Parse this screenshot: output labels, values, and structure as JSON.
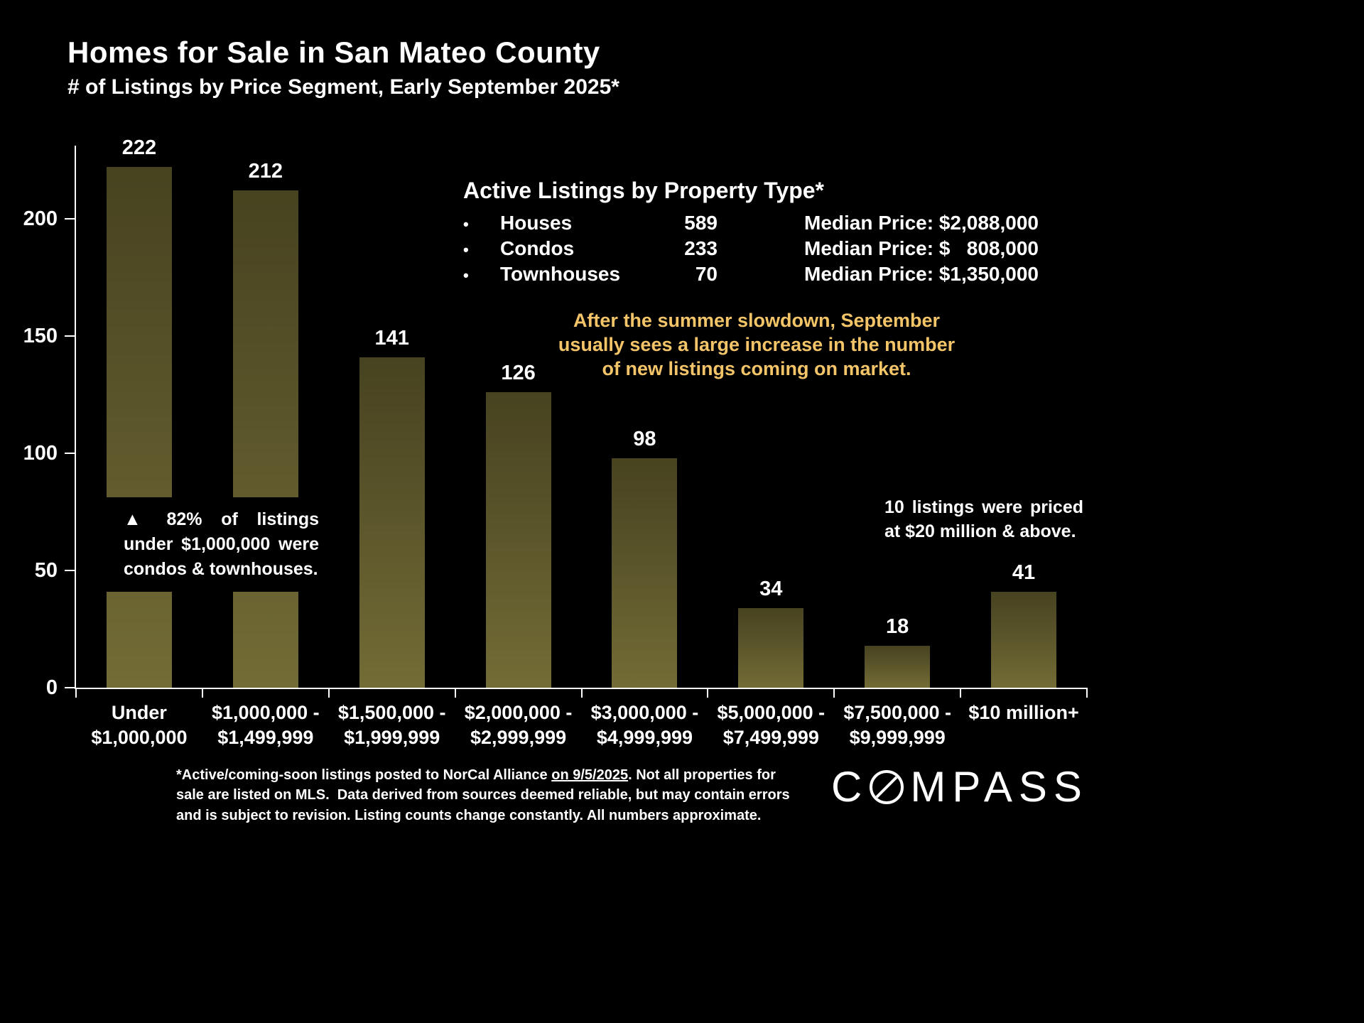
{
  "header": {
    "title": "Homes for Sale in San Mateo County",
    "subtitle": "# of Listings by Price Segment, Early September 2025*"
  },
  "chart_data": {
    "type": "bar",
    "title": "Homes for Sale in San Mateo County",
    "subtitle": "# of Listings by Price Segment, Early September 2025*",
    "categories": [
      "Under\n$1,000,000",
      "$1,000,000 -\n$1,499,999",
      "$1,500,000 -\n$1,999,999",
      "$2,000,000 -\n$2,999,999",
      "$3,000,000 -\n$4,999,999",
      "$5,000,000 -\n$7,499,999",
      "$7,500,000 -\n$9,999,999",
      "$10 million+"
    ],
    "values": [
      222,
      212,
      141,
      126,
      98,
      34,
      18,
      41
    ],
    "xlabel": "",
    "ylabel": "",
    "ylim": [
      0,
      232
    ],
    "yticks": [
      0,
      50,
      100,
      150,
      200
    ],
    "grid": false,
    "legend": "none",
    "bar_gradient_top": "#474320",
    "bar_gradient_bottom": "#736c36"
  },
  "property_panel": {
    "heading": "Active Listings by Property Type*",
    "bullet": "•",
    "rows": [
      {
        "type": "Houses",
        "count": "589",
        "median": "Median Price: $2,088,000"
      },
      {
        "type": "Condos",
        "count": "233",
        "median": "Median Price: $   808,000"
      },
      {
        "type": "Townhouses",
        "count": "70",
        "median": "Median Price: $1,350,000"
      }
    ]
  },
  "annotations": {
    "september_note": "After the summer slowdown, September\nusually sees a large increase in the number\nof new listings coming on market.",
    "under_1m_marker": "▲",
    "under_1m_note": "82% of listings under $1,000,000 were condos & townhouses.",
    "luxury_note": "10 listings were priced at $20 million & above."
  },
  "footnote": {
    "part1": "*Active/coming-soon listings posted to NorCal Alliance ",
    "underlined": "on 9/5/2025",
    "part2": ". Not all properties for sale are listed on MLS.  Data derived from sources deemed reliable, but may contain errors and is subject to revision. Listing counts change constantly. All numbers approximate."
  },
  "logo": {
    "part1": "C",
    "part2": "MPASS"
  },
  "colors": {
    "background": "#000000",
    "text": "#ffffff",
    "accent_note": "#f3c568",
    "bar_top": "#474320",
    "bar_bottom": "#736c36"
  }
}
